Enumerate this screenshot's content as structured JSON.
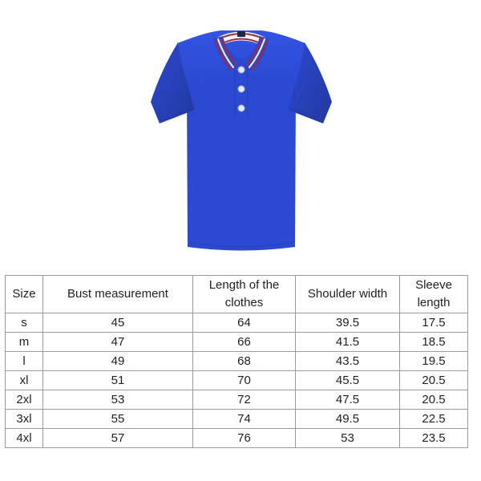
{
  "product": {
    "image_name": "blue-polo-shirt"
  },
  "colors": {
    "shirt_main": "#2b49d1",
    "shirt_light": "#3354e2",
    "shirt_dark": "#22399f",
    "trim_red": "#9c2d3a",
    "trim_white": "#f5f5f7",
    "button_fill": "#e3eaf8",
    "button_edge": "#a9b6d4",
    "label_dark": "#1b2a4a",
    "table_border": "#9b9b9b",
    "text_color": "#1f1f1f",
    "page_bg": "#ffffff"
  },
  "size_chart": {
    "headers": [
      "Size",
      "Bust measurement",
      "Length of the clothes",
      "Shoulder width",
      "Sleeve length"
    ],
    "rows": [
      [
        "s",
        "45",
        "64",
        "39.5",
        "17.5"
      ],
      [
        "m",
        "47",
        "66",
        "41.5",
        "18.5"
      ],
      [
        "l",
        "49",
        "68",
        "43.5",
        "19.5"
      ],
      [
        "xl",
        "51",
        "70",
        "45.5",
        "20.5"
      ],
      [
        "2xl",
        "53",
        "72",
        "47.5",
        "20.5"
      ],
      [
        "3xl",
        "55",
        "74",
        "49.5",
        "22.5"
      ],
      [
        "4xl",
        "57",
        "76",
        "53",
        "23.5"
      ]
    ]
  }
}
